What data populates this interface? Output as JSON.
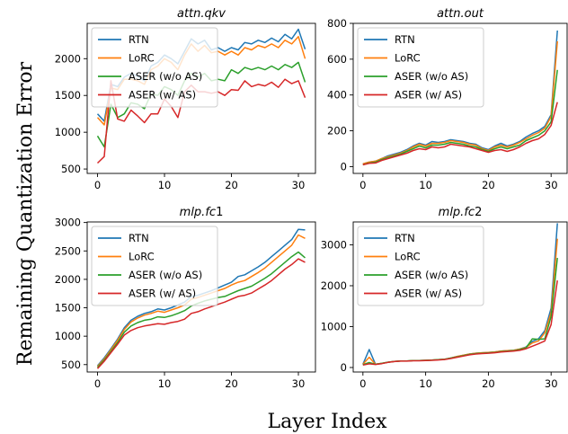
{
  "figure": {
    "ylabel": "Remaining Quantization Error",
    "xlabel": "Layer Index"
  },
  "legend": [
    "RTN",
    "LoRC",
    "ASER (w/o AS)",
    "ASER (w/ AS)"
  ],
  "colors": {
    "RTN": "#1f77b4",
    "LoRC": "#ff7f0e",
    "ASER (w/o AS)": "#2ca02c",
    "ASER (w/ AS)": "#d62728"
  },
  "chart_data": [
    {
      "type": "line",
      "title": "attn.qkv",
      "title_parts": [
        "attn.",
        "qkv"
      ],
      "xlim": [
        -1.55,
        32.55
      ],
      "ylim": [
        440,
        2480
      ],
      "xticks": [
        0,
        10,
        20,
        30
      ],
      "yticks": [
        500,
        1000,
        1500,
        2000
      ],
      "legend_position": "upper-left",
      "x": [
        0,
        1,
        2,
        3,
        4,
        5,
        6,
        7,
        8,
        9,
        10,
        11,
        12,
        13,
        14,
        15,
        16,
        17,
        18,
        19,
        20,
        21,
        22,
        23,
        24,
        25,
        26,
        27,
        28,
        29,
        30,
        31
      ],
      "series": [
        {
          "name": "RTN",
          "values": [
            1250,
            1150,
            1650,
            1620,
            1750,
            1800,
            1760,
            1700,
            1900,
            1950,
            2050,
            2000,
            1930,
            2100,
            2270,
            2200,
            2250,
            2120,
            2150,
            2100,
            2150,
            2120,
            2220,
            2200,
            2250,
            2220,
            2280,
            2230,
            2330,
            2270,
            2400,
            2130
          ]
        },
        {
          "name": "LoRC",
          "values": [
            1200,
            1100,
            1600,
            1580,
            1720,
            1720,
            1700,
            1650,
            1850,
            1900,
            2000,
            1950,
            1850,
            2050,
            2200,
            2100,
            2180,
            2080,
            2100,
            2050,
            2100,
            2050,
            2150,
            2120,
            2180,
            2150,
            2200,
            2150,
            2250,
            2200,
            2300,
            2000
          ]
        },
        {
          "name": "ASER (w/o AS)",
          "values": [
            950,
            800,
            1380,
            1200,
            1250,
            1400,
            1380,
            1320,
            1520,
            1500,
            1620,
            1580,
            1500,
            1700,
            1800,
            1750,
            1800,
            1700,
            1720,
            1700,
            1850,
            1800,
            1880,
            1850,
            1880,
            1850,
            1900,
            1850,
            1920,
            1880,
            1950,
            1680
          ]
        },
        {
          "name": "ASER (w/ AS)",
          "values": [
            580,
            670,
            1700,
            1180,
            1150,
            1300,
            1220,
            1130,
            1250,
            1250,
            1450,
            1350,
            1200,
            1550,
            1640,
            1550,
            1550,
            1530,
            1550,
            1500,
            1580,
            1570,
            1700,
            1620,
            1650,
            1630,
            1680,
            1610,
            1720,
            1660,
            1700,
            1470
          ]
        }
      ]
    },
    {
      "type": "line",
      "title": "attn.out",
      "title_parts": [
        "attn.",
        "out"
      ],
      "xlim": [
        -1.55,
        32.55
      ],
      "ylim": [
        -38,
        800
      ],
      "xticks": [
        0,
        10,
        20,
        30
      ],
      "yticks": [
        0,
        200,
        400,
        600,
        800
      ],
      "legend_position": "upper-left",
      "x": [
        0,
        1,
        2,
        3,
        4,
        5,
        6,
        7,
        8,
        9,
        10,
        11,
        12,
        13,
        14,
        15,
        16,
        17,
        18,
        19,
        20,
        21,
        22,
        23,
        24,
        25,
        26,
        27,
        28,
        29,
        30,
        31
      ],
      "series": [
        {
          "name": "RTN",
          "values": [
            15,
            25,
            30,
            45,
            60,
            70,
            80,
            95,
            115,
            130,
            120,
            140,
            135,
            140,
            150,
            145,
            140,
            130,
            125,
            105,
            95,
            115,
            130,
            115,
            125,
            140,
            165,
            185,
            200,
            225,
            290,
            760
          ]
        },
        {
          "name": "LoRC",
          "values": [
            15,
            25,
            30,
            45,
            55,
            65,
            75,
            90,
            110,
            125,
            115,
            130,
            130,
            135,
            145,
            140,
            135,
            125,
            120,
            100,
            90,
            110,
            120,
            110,
            120,
            135,
            155,
            175,
            190,
            215,
            280,
            700
          ]
        },
        {
          "name": "ASER (w/o AS)",
          "values": [
            10,
            20,
            25,
            40,
            50,
            60,
            70,
            85,
            100,
            115,
            105,
            120,
            120,
            125,
            135,
            130,
            125,
            115,
            110,
            95,
            85,
            100,
            110,
            100,
            110,
            120,
            145,
            160,
            175,
            200,
            250,
            540
          ]
        },
        {
          "name": "ASER (w/ AS)",
          "values": [
            10,
            18,
            20,
            35,
            45,
            55,
            65,
            75,
            90,
            100,
            95,
            110,
            105,
            110,
            125,
            120,
            115,
            110,
            100,
            90,
            80,
            90,
            95,
            85,
            95,
            110,
            130,
            145,
            155,
            180,
            230,
            360
          ]
        }
      ]
    },
    {
      "type": "line",
      "title": "mlp.fc1",
      "title_parts": [
        "mlp.",
        "fc",
        "1"
      ],
      "xlim": [
        -1.55,
        32.55
      ],
      "ylim": [
        370,
        3010
      ],
      "xticks": [
        0,
        10,
        20,
        30
      ],
      "yticks": [
        500,
        1000,
        1500,
        2000,
        2500,
        3000
      ],
      "legend_position": "upper-left",
      "x": [
        0,
        1,
        2,
        3,
        4,
        5,
        6,
        7,
        8,
        9,
        10,
        11,
        12,
        13,
        14,
        15,
        16,
        17,
        18,
        19,
        20,
        21,
        22,
        23,
        24,
        25,
        26,
        27,
        28,
        29,
        30,
        31
      ],
      "series": [
        {
          "name": "RTN",
          "values": [
            480,
            620,
            780,
            950,
            1150,
            1280,
            1350,
            1400,
            1430,
            1480,
            1460,
            1500,
            1550,
            1600,
            1700,
            1720,
            1760,
            1800,
            1850,
            1900,
            1950,
            2050,
            2080,
            2150,
            2220,
            2300,
            2400,
            2500,
            2600,
            2700,
            2880,
            2870
          ]
        },
        {
          "name": "LoRC",
          "values": [
            470,
            600,
            760,
            930,
            1120,
            1250,
            1320,
            1370,
            1400,
            1440,
            1420,
            1460,
            1500,
            1550,
            1650,
            1680,
            1720,
            1760,
            1800,
            1840,
            1900,
            1950,
            1980,
            2050,
            2120,
            2200,
            2300,
            2400,
            2500,
            2600,
            2780,
            2720
          ]
        },
        {
          "name": "ASER (w/o AS)",
          "values": [
            450,
            580,
            730,
            890,
            1070,
            1180,
            1240,
            1280,
            1300,
            1340,
            1330,
            1360,
            1400,
            1450,
            1530,
            1580,
            1620,
            1650,
            1680,
            1700,
            1750,
            1800,
            1840,
            1880,
            1950,
            2020,
            2100,
            2200,
            2300,
            2400,
            2480,
            2380
          ]
        },
        {
          "name": "ASER (w/ AS)",
          "values": [
            430,
            560,
            710,
            860,
            1020,
            1100,
            1150,
            1180,
            1200,
            1220,
            1210,
            1240,
            1260,
            1300,
            1400,
            1430,
            1480,
            1520,
            1560,
            1600,
            1650,
            1700,
            1720,
            1760,
            1830,
            1900,
            1980,
            2080,
            2180,
            2260,
            2360,
            2300
          ]
        }
      ]
    },
    {
      "type": "line",
      "title": "mlp.fc2",
      "title_parts": [
        "mlp.",
        "fc",
        "2"
      ],
      "xlim": [
        -1.55,
        32.55
      ],
      "ylim": [
        -110,
        3560
      ],
      "xticks": [
        0,
        10,
        20,
        30
      ],
      "yticks": [
        0,
        1000,
        2000,
        3000
      ],
      "legend_position": "upper-left",
      "x": [
        0,
        1,
        2,
        3,
        4,
        5,
        6,
        7,
        8,
        9,
        10,
        11,
        12,
        13,
        14,
        15,
        16,
        17,
        18,
        19,
        20,
        21,
        22,
        23,
        24,
        25,
        26,
        27,
        28,
        29,
        30,
        31
      ],
      "series": [
        {
          "name": "RTN",
          "values": [
            80,
            440,
            80,
            100,
            130,
            150,
            160,
            160,
            170,
            170,
            175,
            180,
            190,
            200,
            230,
            270,
            300,
            330,
            350,
            360,
            370,
            380,
            400,
            410,
            420,
            450,
            500,
            640,
            700,
            900,
            1450,
            3530
          ]
        },
        {
          "name": "LoRC",
          "values": [
            80,
            250,
            80,
            100,
            130,
            150,
            160,
            160,
            170,
            170,
            175,
            180,
            190,
            200,
            230,
            270,
            300,
            330,
            350,
            360,
            370,
            380,
            400,
            410,
            420,
            450,
            490,
            600,
            650,
            850,
            1350,
            3150
          ]
        },
        {
          "name": "ASER (w/o AS)",
          "values": [
            70,
            120,
            80,
            100,
            130,
            150,
            160,
            160,
            170,
            170,
            175,
            180,
            190,
            200,
            230,
            260,
            290,
            320,
            340,
            350,
            360,
            370,
            390,
            400,
            410,
            440,
            480,
            700,
            690,
            700,
            1250,
            2680
          ]
        },
        {
          "name": "ASER (w/ AS)",
          "values": [
            60,
            90,
            75,
            95,
            125,
            145,
            155,
            155,
            165,
            165,
            170,
            175,
            185,
            195,
            220,
            250,
            280,
            310,
            330,
            340,
            350,
            360,
            380,
            390,
            400,
            420,
            460,
            520,
            580,
            650,
            1050,
            2130
          ]
        }
      ]
    }
  ]
}
